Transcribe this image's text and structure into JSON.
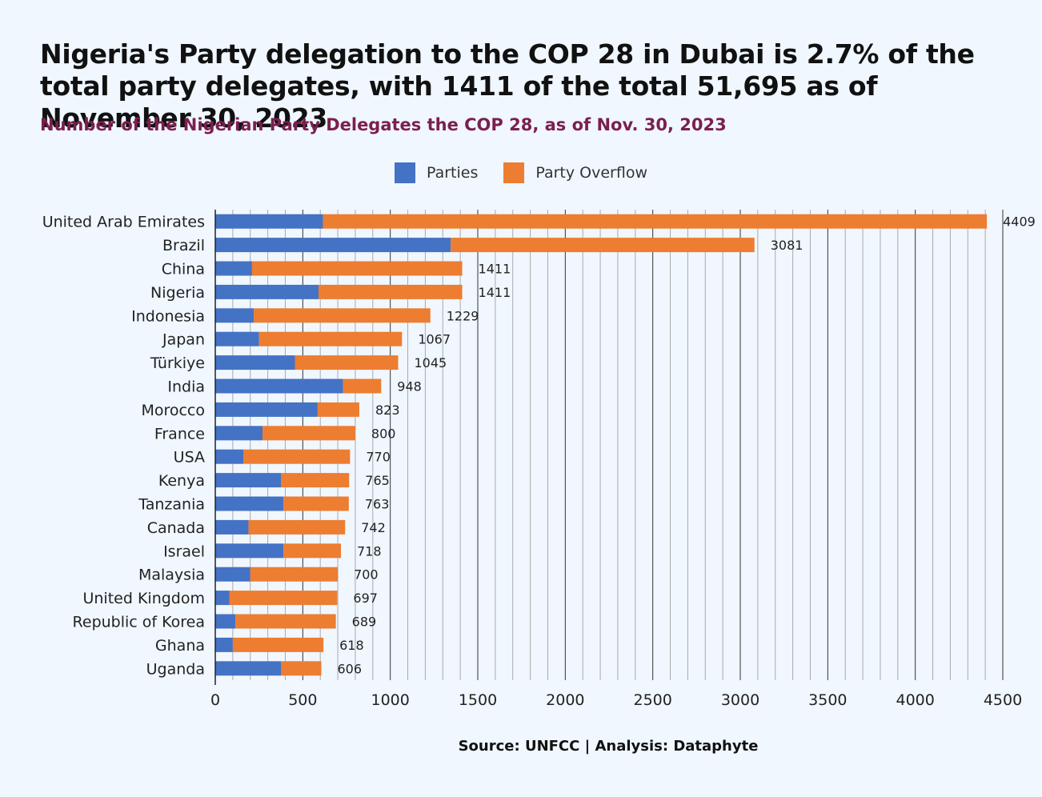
{
  "title": "Nigeria's Party delegation to the COP 28 in Dubai is 2.7% of the total party delegates, with 1411 of the total 51,695 as of November 30, 2023",
  "subtitle": "Number of the Nigerian Party Delegates the COP 28, as of Nov. 30, 2023",
  "source": "Source: UNFCC | Analysis: Dataphyte",
  "colors": {
    "parties": "#4472c4",
    "overflow": "#ed7d31"
  },
  "chart_data": {
    "type": "bar",
    "orientation": "horizontal",
    "stacked": true,
    "categories": [
      "United Arab Emirates",
      "Brazil",
      "China",
      "Nigeria",
      "Indonesia",
      "Japan",
      "Türkiye",
      "India",
      "Morocco",
      "France",
      "USA",
      "Kenya",
      "Tanzania",
      "Canada",
      "Israel",
      "Malaysia",
      "United Kingdom",
      "Republic of Korea",
      "Ghana",
      "Uganda"
    ],
    "series": [
      {
        "name": "Parties",
        "values": [
          615,
          1345,
          210,
          590,
          220,
          250,
          455,
          730,
          585,
          270,
          160,
          375,
          390,
          190,
          390,
          200,
          80,
          115,
          100,
          375
        ]
      },
      {
        "name": "Party Overflow",
        "values": [
          3794,
          1736,
          1201,
          821,
          1009,
          817,
          590,
          218,
          238,
          530,
          610,
          390,
          373,
          552,
          328,
          500,
          617,
          574,
          518,
          231
        ]
      }
    ],
    "totals": [
      4409,
      3081,
      1411,
      1411,
      1229,
      1067,
      1045,
      948,
      823,
      800,
      770,
      765,
      763,
      742,
      718,
      700,
      697,
      689,
      618,
      606
    ],
    "xlim": [
      0,
      4500
    ],
    "xticks": [
      0,
      500,
      1000,
      1500,
      2000,
      2500,
      3000,
      3500,
      4000,
      4500
    ],
    "grid": true,
    "legend_position": "top"
  }
}
